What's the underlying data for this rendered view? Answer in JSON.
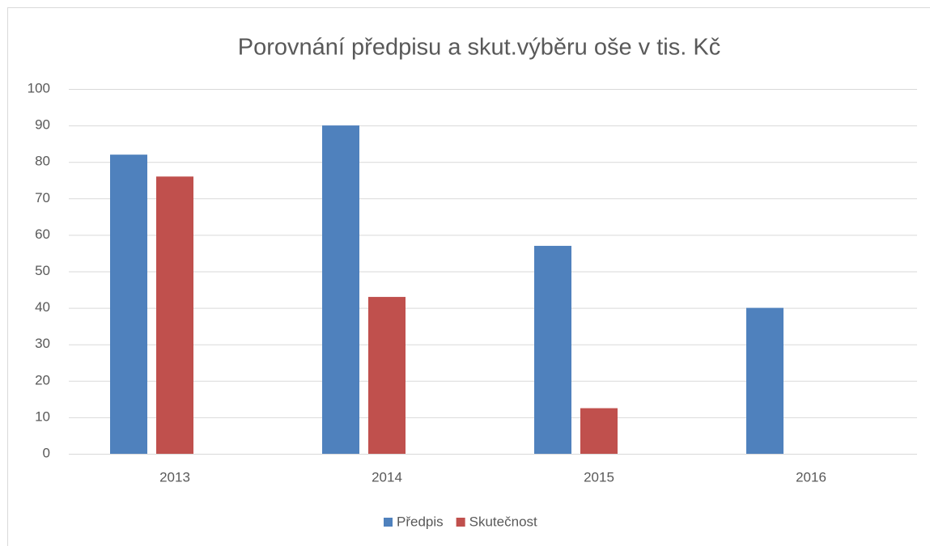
{
  "chart_data": {
    "type": "bar",
    "title": "Porovnání předpisu a skut.výběru oše v tis. Kč",
    "categories": [
      "2013",
      "2014",
      "2015",
      "2016"
    ],
    "series": [
      {
        "name": "Předpis",
        "color": "#4f81bd",
        "values": [
          82,
          90,
          57,
          40
        ]
      },
      {
        "name": "Skutečnost",
        "color": "#c0504d",
        "values": [
          76,
          43,
          12.5,
          null
        ]
      }
    ],
    "ylim": [
      0,
      100
    ],
    "yticks": [
      0,
      10,
      20,
      30,
      40,
      50,
      60,
      70,
      80,
      90,
      100
    ],
    "grid": true,
    "legend": "bottom"
  }
}
